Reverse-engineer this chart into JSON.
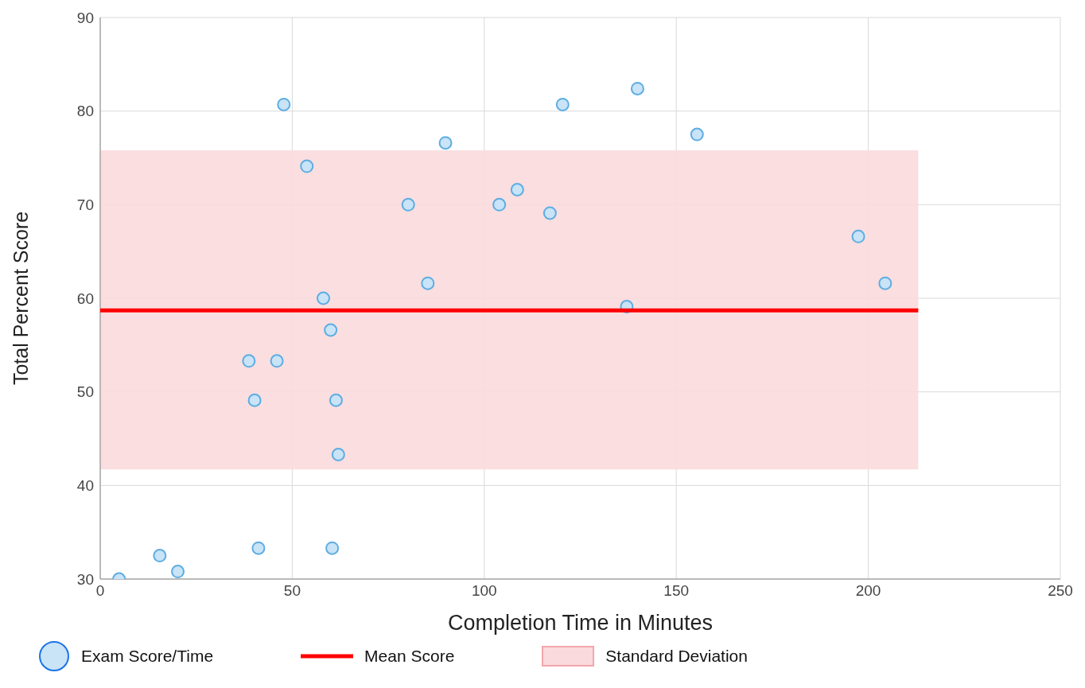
{
  "chart_data": {
    "type": "scatter",
    "xlabel": "Completion Time in Minutes",
    "ylabel": "Total Percent Score",
    "xlim": [
      0,
      250
    ],
    "xticks": [
      0,
      50,
      100,
      150,
      200,
      250
    ],
    "ylim": [
      30,
      90
    ],
    "yticks": [
      30,
      40,
      50,
      60,
      70,
      80,
      90
    ],
    "grid": true,
    "legend": "bottom",
    "marker": "circle",
    "series": [
      {
        "name": "Exam Score/Time",
        "color": "#5dade2",
        "x": [
          4.9,
          15.5,
          20.2,
          41.2,
          60.4,
          38.7,
          46,
          40.2,
          61.4,
          62,
          60,
          58.1,
          53.8,
          47.8,
          80.2,
          85.3,
          89.9,
          103.9,
          108.6,
          117.1,
          120.4,
          139.9,
          137.1,
          155.4,
          197.4,
          204.4
        ],
        "values": [
          30,
          32.5,
          30.8,
          33.3,
          33.3,
          53.3,
          53.3,
          49.1,
          49.1,
          43.3,
          56.6,
          60,
          74.1,
          80.7,
          70,
          61.6,
          76.6,
          70,
          71.6,
          69.1,
          80.7,
          82.4,
          59.1,
          77.5,
          66.6,
          61.6
        ]
      },
      {
        "name": "Mean Score",
        "type": "line",
        "marker": "none",
        "color": "#ff0000",
        "x": [
          0,
          213
        ],
        "values": [
          58.7,
          58.7
        ]
      }
    ],
    "bands": [
      {
        "axis": "y",
        "from": 41.7,
        "to": 75.8,
        "label": "Standard Deviation",
        "color": "#fadadd"
      }
    ]
  }
}
